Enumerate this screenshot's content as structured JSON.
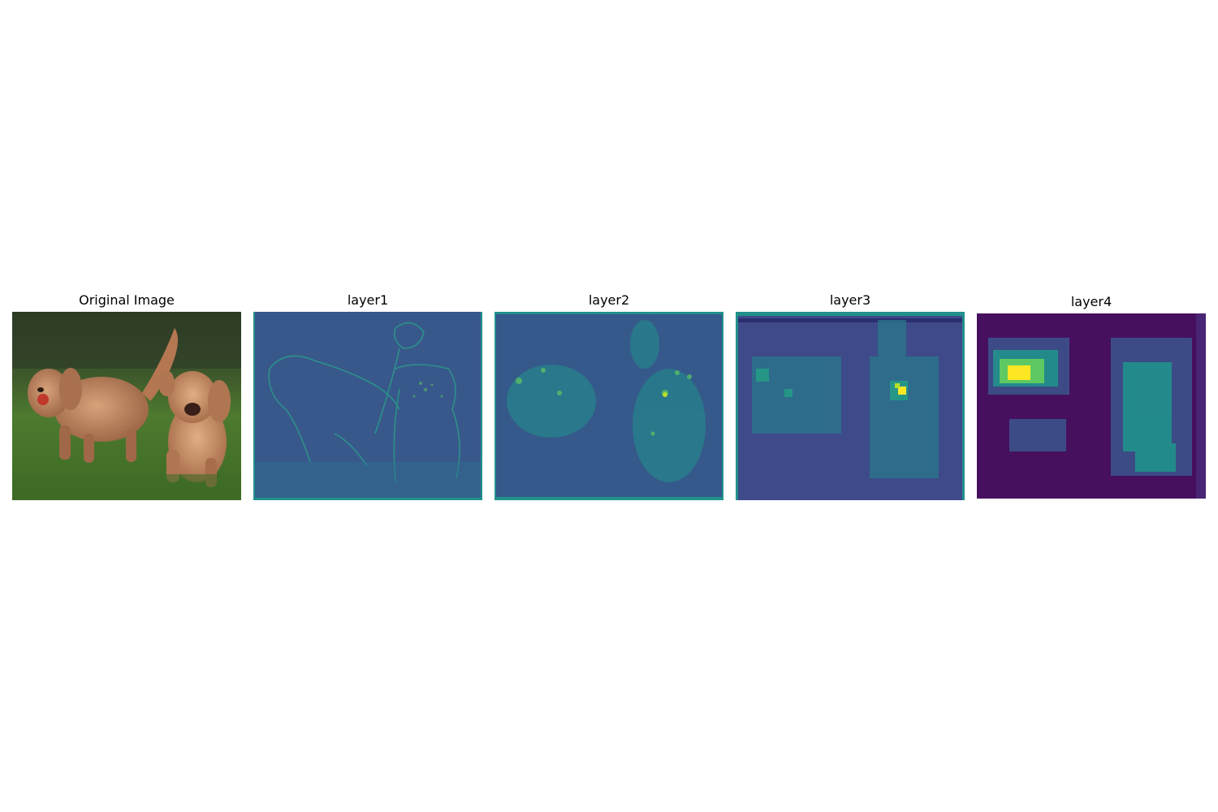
{
  "panels": [
    {
      "title": "Original Image"
    },
    {
      "title": "layer1"
    },
    {
      "title": "layer2"
    },
    {
      "title": "layer3"
    },
    {
      "title": "layer4"
    }
  ],
  "colors": {
    "viridis_dark": "#440154",
    "viridis_blue": "#3b528b",
    "viridis_teal": "#21918c",
    "viridis_green": "#5ec962",
    "viridis_yellow": "#fde725"
  }
}
